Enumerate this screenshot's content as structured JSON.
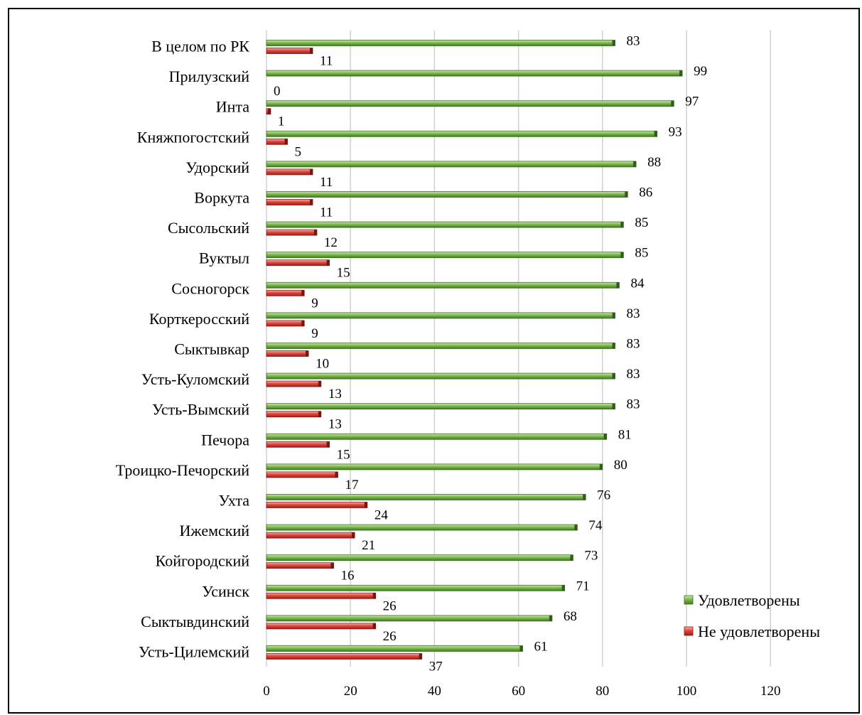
{
  "chart_data": {
    "type": "bar",
    "orientation": "horizontal",
    "categories": [
      "В целом по РК",
      "Прилузский",
      "Инта",
      "Княжпогостский",
      "Удорский",
      "Воркута",
      "Сысольский",
      "Вуктыл",
      "Сосногорск",
      "Корткеросский",
      "Сыктывкар",
      "Усть-Куломский",
      "Усть-Вымский",
      "Печора",
      "Троицко-Печорский",
      "Ухта",
      "Ижемский",
      "Койгородский",
      "Усинск",
      "Сыктывдинский",
      "Усть-Цилемский"
    ],
    "series": [
      {
        "name": "Удовлетворены",
        "color": "#5b9a3a",
        "values": [
          83,
          99,
          97,
          93,
          88,
          86,
          85,
          85,
          84,
          83,
          83,
          83,
          83,
          81,
          80,
          76,
          74,
          73,
          71,
          68,
          61
        ]
      },
      {
        "name": "Не удовлетворены",
        "color": "#d9423a",
        "values": [
          11,
          0,
          1,
          5,
          11,
          11,
          12,
          15,
          9,
          9,
          10,
          13,
          13,
          15,
          17,
          24,
          21,
          16,
          26,
          26,
          37
        ]
      }
    ],
    "xlim": [
      0,
      120
    ],
    "xticks": [
      "0",
      "20",
      "40",
      "60",
      "80",
      "100",
      "120"
    ],
    "grid": true,
    "legend_position": "bottom-right",
    "data_labels": true
  }
}
